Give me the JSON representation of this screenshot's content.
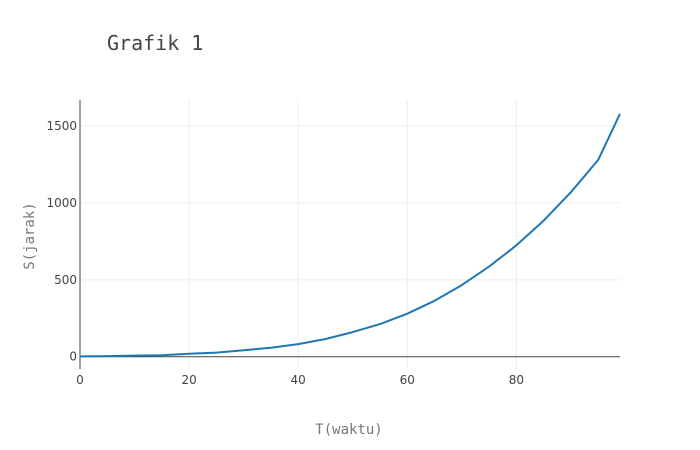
{
  "chart_data": {
    "type": "line",
    "title": "Grafik 1",
    "xlabel": "T(waktu)",
    "ylabel": "S(jarak)",
    "xlim": [
      0,
      99
    ],
    "ylim": [
      -80,
      1670
    ],
    "x_ticks": [
      0,
      20,
      40,
      60,
      80
    ],
    "y_ticks": [
      0,
      500,
      1000,
      1500
    ],
    "x_tick_labels": [
      "0",
      "20",
      "40",
      "60",
      "80"
    ],
    "y_tick_labels": [
      "0",
      "500",
      "1000",
      "1500"
    ],
    "grid": true,
    "line_color": "#1f77b4",
    "series": [
      {
        "x": [
          0,
          5,
          10,
          15,
          20,
          25,
          30,
          35,
          40,
          45,
          50,
          55,
          60,
          65,
          70,
          75,
          80,
          85,
          90,
          95,
          99
        ],
        "y": [
          2,
          4,
          7,
          10,
          19,
          27,
          42,
          58,
          82,
          115,
          160,
          212,
          280,
          364,
          466,
          586,
          725,
          885,
          1070,
          1280,
          1580
        ]
      }
    ]
  }
}
